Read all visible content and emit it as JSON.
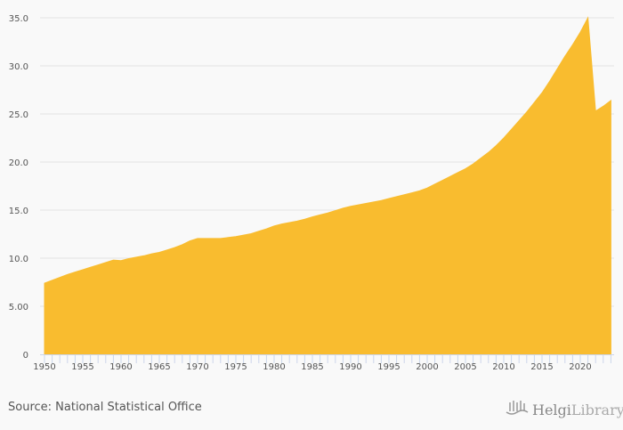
{
  "chart_data": {
    "type": "area",
    "title": "",
    "xlabel": "",
    "ylabel": "",
    "xlim": [
      1950,
      2024
    ],
    "ylim": [
      0,
      35
    ],
    "yticks": [
      "0",
      "5.00",
      "10.0",
      "15.0",
      "20.0",
      "25.0",
      "30.0",
      "35.0"
    ],
    "ytick_values": [
      0,
      5,
      10,
      15,
      20,
      25,
      30,
      35
    ],
    "xticks": [
      "1950",
      "1955",
      "1960",
      "1965",
      "1970",
      "1975",
      "1980",
      "1985",
      "1990",
      "1995",
      "2000",
      "2005",
      "2010",
      "2015",
      "2020"
    ],
    "grid": true,
    "color": "#f9bc2f",
    "x": [
      1950,
      1951,
      1952,
      1953,
      1954,
      1955,
      1956,
      1957,
      1958,
      1959,
      1960,
      1961,
      1962,
      1963,
      1964,
      1965,
      1966,
      1967,
      1968,
      1969,
      1970,
      1971,
      1972,
      1973,
      1974,
      1975,
      1976,
      1977,
      1978,
      1979,
      1980,
      1981,
      1982,
      1983,
      1984,
      1985,
      1986,
      1987,
      1988,
      1989,
      1990,
      1991,
      1992,
      1993,
      1994,
      1995,
      1996,
      1997,
      1998,
      1999,
      2000,
      2001,
      2002,
      2003,
      2004,
      2005,
      2006,
      2007,
      2008,
      2009,
      2010,
      2011,
      2012,
      2013,
      2014,
      2015,
      2016,
      2017,
      2018,
      2019,
      2020,
      2021,
      2022,
      2023,
      2024
    ],
    "values": [
      7.4,
      7.7,
      8.0,
      8.3,
      8.55,
      8.8,
      9.05,
      9.3,
      9.55,
      9.8,
      9.75,
      9.95,
      10.1,
      10.25,
      10.45,
      10.6,
      10.85,
      11.1,
      11.4,
      11.8,
      12.05,
      12.05,
      12.05,
      12.05,
      12.15,
      12.25,
      12.4,
      12.55,
      12.8,
      13.05,
      13.35,
      13.55,
      13.7,
      13.85,
      14.05,
      14.3,
      14.5,
      14.7,
      14.95,
      15.2,
      15.4,
      15.55,
      15.7,
      15.85,
      16.0,
      16.2,
      16.4,
      16.6,
      16.8,
      17.0,
      17.3,
      17.7,
      18.1,
      18.5,
      18.9,
      19.3,
      19.8,
      20.4,
      21.0,
      21.7,
      22.5,
      23.4,
      24.3,
      25.2,
      26.2,
      27.2,
      28.4,
      29.7,
      31.0,
      32.2,
      33.5,
      35.0,
      25.3,
      25.8,
      26.4
    ]
  },
  "footer": {
    "source": "Source: National Statistical Office",
    "logo_text_1": "Helgi",
    "logo_text_2": "Library."
  }
}
